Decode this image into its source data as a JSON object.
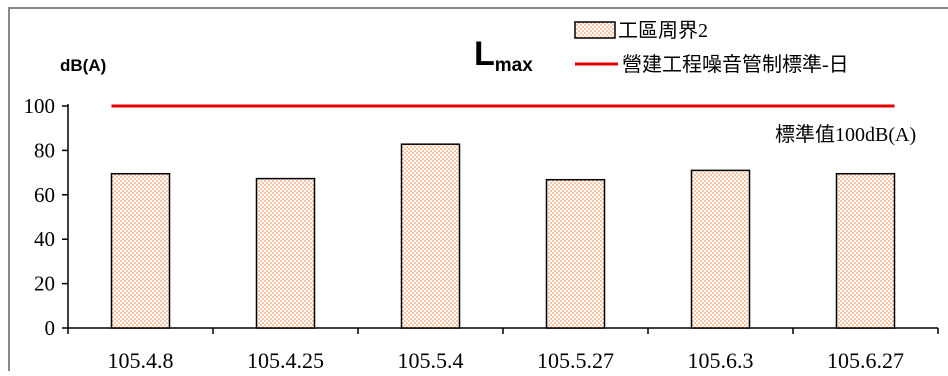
{
  "chart_data": {
    "type": "bar",
    "title_main": "L",
    "title_sub": "max",
    "ylabel": "dB(A)",
    "xlabel": "",
    "categories": [
      "105.4.8",
      "105.4.25",
      "105.5.4",
      "105.5.27",
      "105.6.3",
      "105.6.27"
    ],
    "series": [
      {
        "name": "工區周界2",
        "values": [
          69.5,
          67.3,
          82.8,
          66.8,
          71.0,
          69.5
        ]
      }
    ],
    "reference_line": {
      "name": "營建工程噪音管制標準-日",
      "value": 100
    },
    "annotation": "標準值100dB(A)",
    "ylim": [
      0,
      100
    ],
    "yticks": [
      0,
      20,
      40,
      60,
      80,
      100
    ],
    "legend_position": "top-right",
    "grid": false,
    "colors": {
      "bar_dot": "#e8792a",
      "bar_stroke": "#000000",
      "reference": "#e00000",
      "frame": "#888888"
    }
  }
}
